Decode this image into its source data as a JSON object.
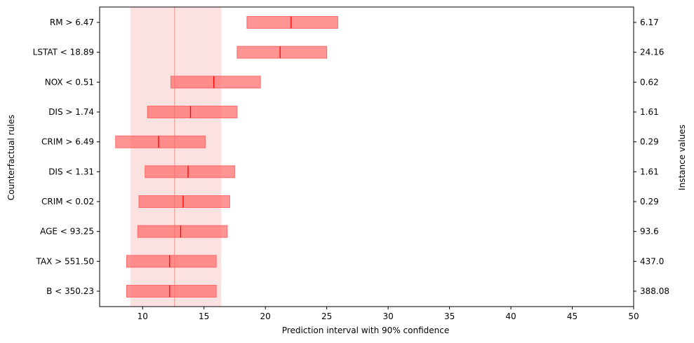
{
  "chart_data": {
    "type": "bar",
    "xlabel": "Prediction interval with 90% confidence",
    "ylabel": "Counterfactual rules",
    "y2label": "Instance values",
    "xlim": [
      6.5,
      50
    ],
    "xticks": [
      10,
      15,
      20,
      25,
      30,
      35,
      40,
      45,
      50
    ],
    "grid": false,
    "baseline": {
      "prediction": 12.6,
      "interval": [
        9.0,
        16.4
      ],
      "color": "#f4a39b"
    },
    "bar_color": "#ff6b6b",
    "median_color": "#ff0000",
    "rules": [
      {
        "label": "RM > 6.47",
        "instance_value": "6.17",
        "low": 18.5,
        "high": 25.9,
        "median": 22.1
      },
      {
        "label": "LSTAT < 18.89",
        "instance_value": "24.16",
        "low": 17.7,
        "high": 25.0,
        "median": 21.2
      },
      {
        "label": "NOX < 0.51",
        "instance_value": "0.62",
        "low": 12.3,
        "high": 19.6,
        "median": 15.8
      },
      {
        "label": "DIS > 1.74",
        "instance_value": "1.61",
        "low": 10.4,
        "high": 17.7,
        "median": 13.9
      },
      {
        "label": "CRIM > 6.49",
        "instance_value": "0.29",
        "low": 7.8,
        "high": 15.1,
        "median": 11.3
      },
      {
        "label": "DIS < 1.31",
        "instance_value": "1.61",
        "low": 10.2,
        "high": 17.5,
        "median": 13.7
      },
      {
        "label": "CRIM < 0.02",
        "instance_value": "0.29",
        "low": 9.7,
        "high": 17.1,
        "median": 13.3
      },
      {
        "label": "AGE < 93.25",
        "instance_value": "93.6",
        "low": 9.6,
        "high": 16.9,
        "median": 13.1
      },
      {
        "label": "TAX > 551.50",
        "instance_value": "437.0",
        "low": 8.7,
        "high": 16.0,
        "median": 12.2
      },
      {
        "label": "B < 350.23",
        "instance_value": "388.08",
        "low": 8.7,
        "high": 16.0,
        "median": 12.2
      }
    ]
  }
}
